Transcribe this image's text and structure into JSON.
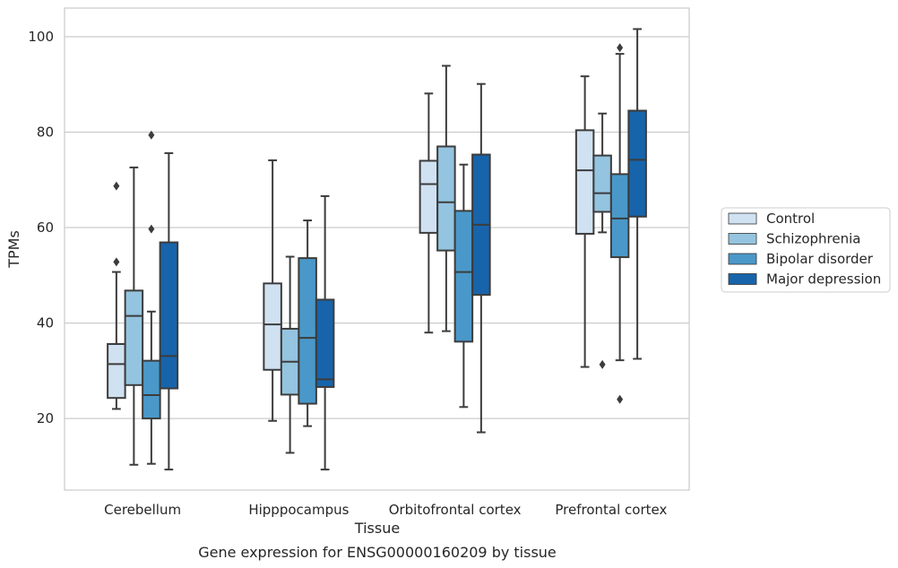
{
  "chart_data": {
    "type": "box",
    "caption": "Gene expression for ENSG00000160209 by tissue",
    "xlabel": "Tissue",
    "ylabel": "TPMs",
    "ylim": [
      5,
      106
    ],
    "yticks": [
      20,
      40,
      60,
      80,
      100
    ],
    "grid": "horizontal",
    "legend_position": "right",
    "categories": [
      "Cerebellum",
      "Hipppocampus",
      "Orbitofrontal cortex",
      "Prefrontal cortex"
    ],
    "series": [
      {
        "name": "Control",
        "color": "#d0e1f2",
        "boxes": [
          {
            "whislo": 22,
            "q1": 24.3,
            "med": 31.4,
            "q3": 35.6,
            "whishi": 50.7,
            "fliers": [
              52.8,
              68.7
            ]
          },
          {
            "whislo": 19.5,
            "q1": 30.2,
            "med": 39.7,
            "q3": 48.3,
            "whishi": 74.1,
            "fliers": []
          },
          {
            "whislo": 38,
            "q1": 58.9,
            "med": 69.1,
            "q3": 74.0,
            "whishi": 88.1,
            "fliers": []
          },
          {
            "whislo": 30.8,
            "q1": 58.7,
            "med": 72.0,
            "q3": 80.4,
            "whishi": 91.7,
            "fliers": []
          }
        ]
      },
      {
        "name": "Schizophrenia",
        "color": "#94c4df",
        "boxes": [
          {
            "whislo": 10.3,
            "q1": 27.0,
            "med": 41.5,
            "q3": 46.8,
            "whishi": 72.6,
            "fliers": []
          },
          {
            "whislo": 12.8,
            "q1": 25.0,
            "med": 31.9,
            "q3": 38.8,
            "whishi": 53.9,
            "fliers": []
          },
          {
            "whislo": 38.3,
            "q1": 55.2,
            "med": 65.3,
            "q3": 77.0,
            "whishi": 93.9,
            "fliers": []
          },
          {
            "whislo": 59.0,
            "q1": 63.3,
            "med": 67.2,
            "q3": 75.1,
            "whishi": 83.9,
            "fliers": [
              31.3
            ]
          }
        ]
      },
      {
        "name": "Bipolar disorder",
        "color": "#4a98c9",
        "boxes": [
          {
            "whislo": 10.5,
            "q1": 20.0,
            "med": 24.9,
            "q3": 32.1,
            "whishi": 42.4,
            "fliers": [
              59.7,
              79.4
            ]
          },
          {
            "whislo": 18.4,
            "q1": 23.1,
            "med": 36.9,
            "q3": 53.6,
            "whishi": 61.5,
            "fliers": []
          },
          {
            "whislo": 22.4,
            "q1": 36.1,
            "med": 50.7,
            "q3": 63.5,
            "whishi": 73.2,
            "fliers": []
          },
          {
            "whislo": 32.2,
            "q1": 53.8,
            "med": 61.9,
            "q3": 71.2,
            "whishi": 96.4,
            "fliers": [
              24.0,
              97.7
            ]
          }
        ]
      },
      {
        "name": "Major depression",
        "color": "#1764ab",
        "boxes": [
          {
            "whislo": 9.3,
            "q1": 26.3,
            "med": 33.1,
            "q3": 56.9,
            "whishi": 75.6,
            "fliers": []
          },
          {
            "whislo": 9.3,
            "q1": 26.6,
            "med": 28.2,
            "q3": 44.9,
            "whishi": 66.6,
            "fliers": []
          },
          {
            "whislo": 17.1,
            "q1": 45.9,
            "med": 60.6,
            "q3": 75.3,
            "whishi": 90.1,
            "fliers": []
          },
          {
            "whislo": 32.5,
            "q1": 62.3,
            "med": 74.2,
            "q3": 84.5,
            "whishi": 101.6,
            "fliers": []
          }
        ]
      }
    ]
  }
}
